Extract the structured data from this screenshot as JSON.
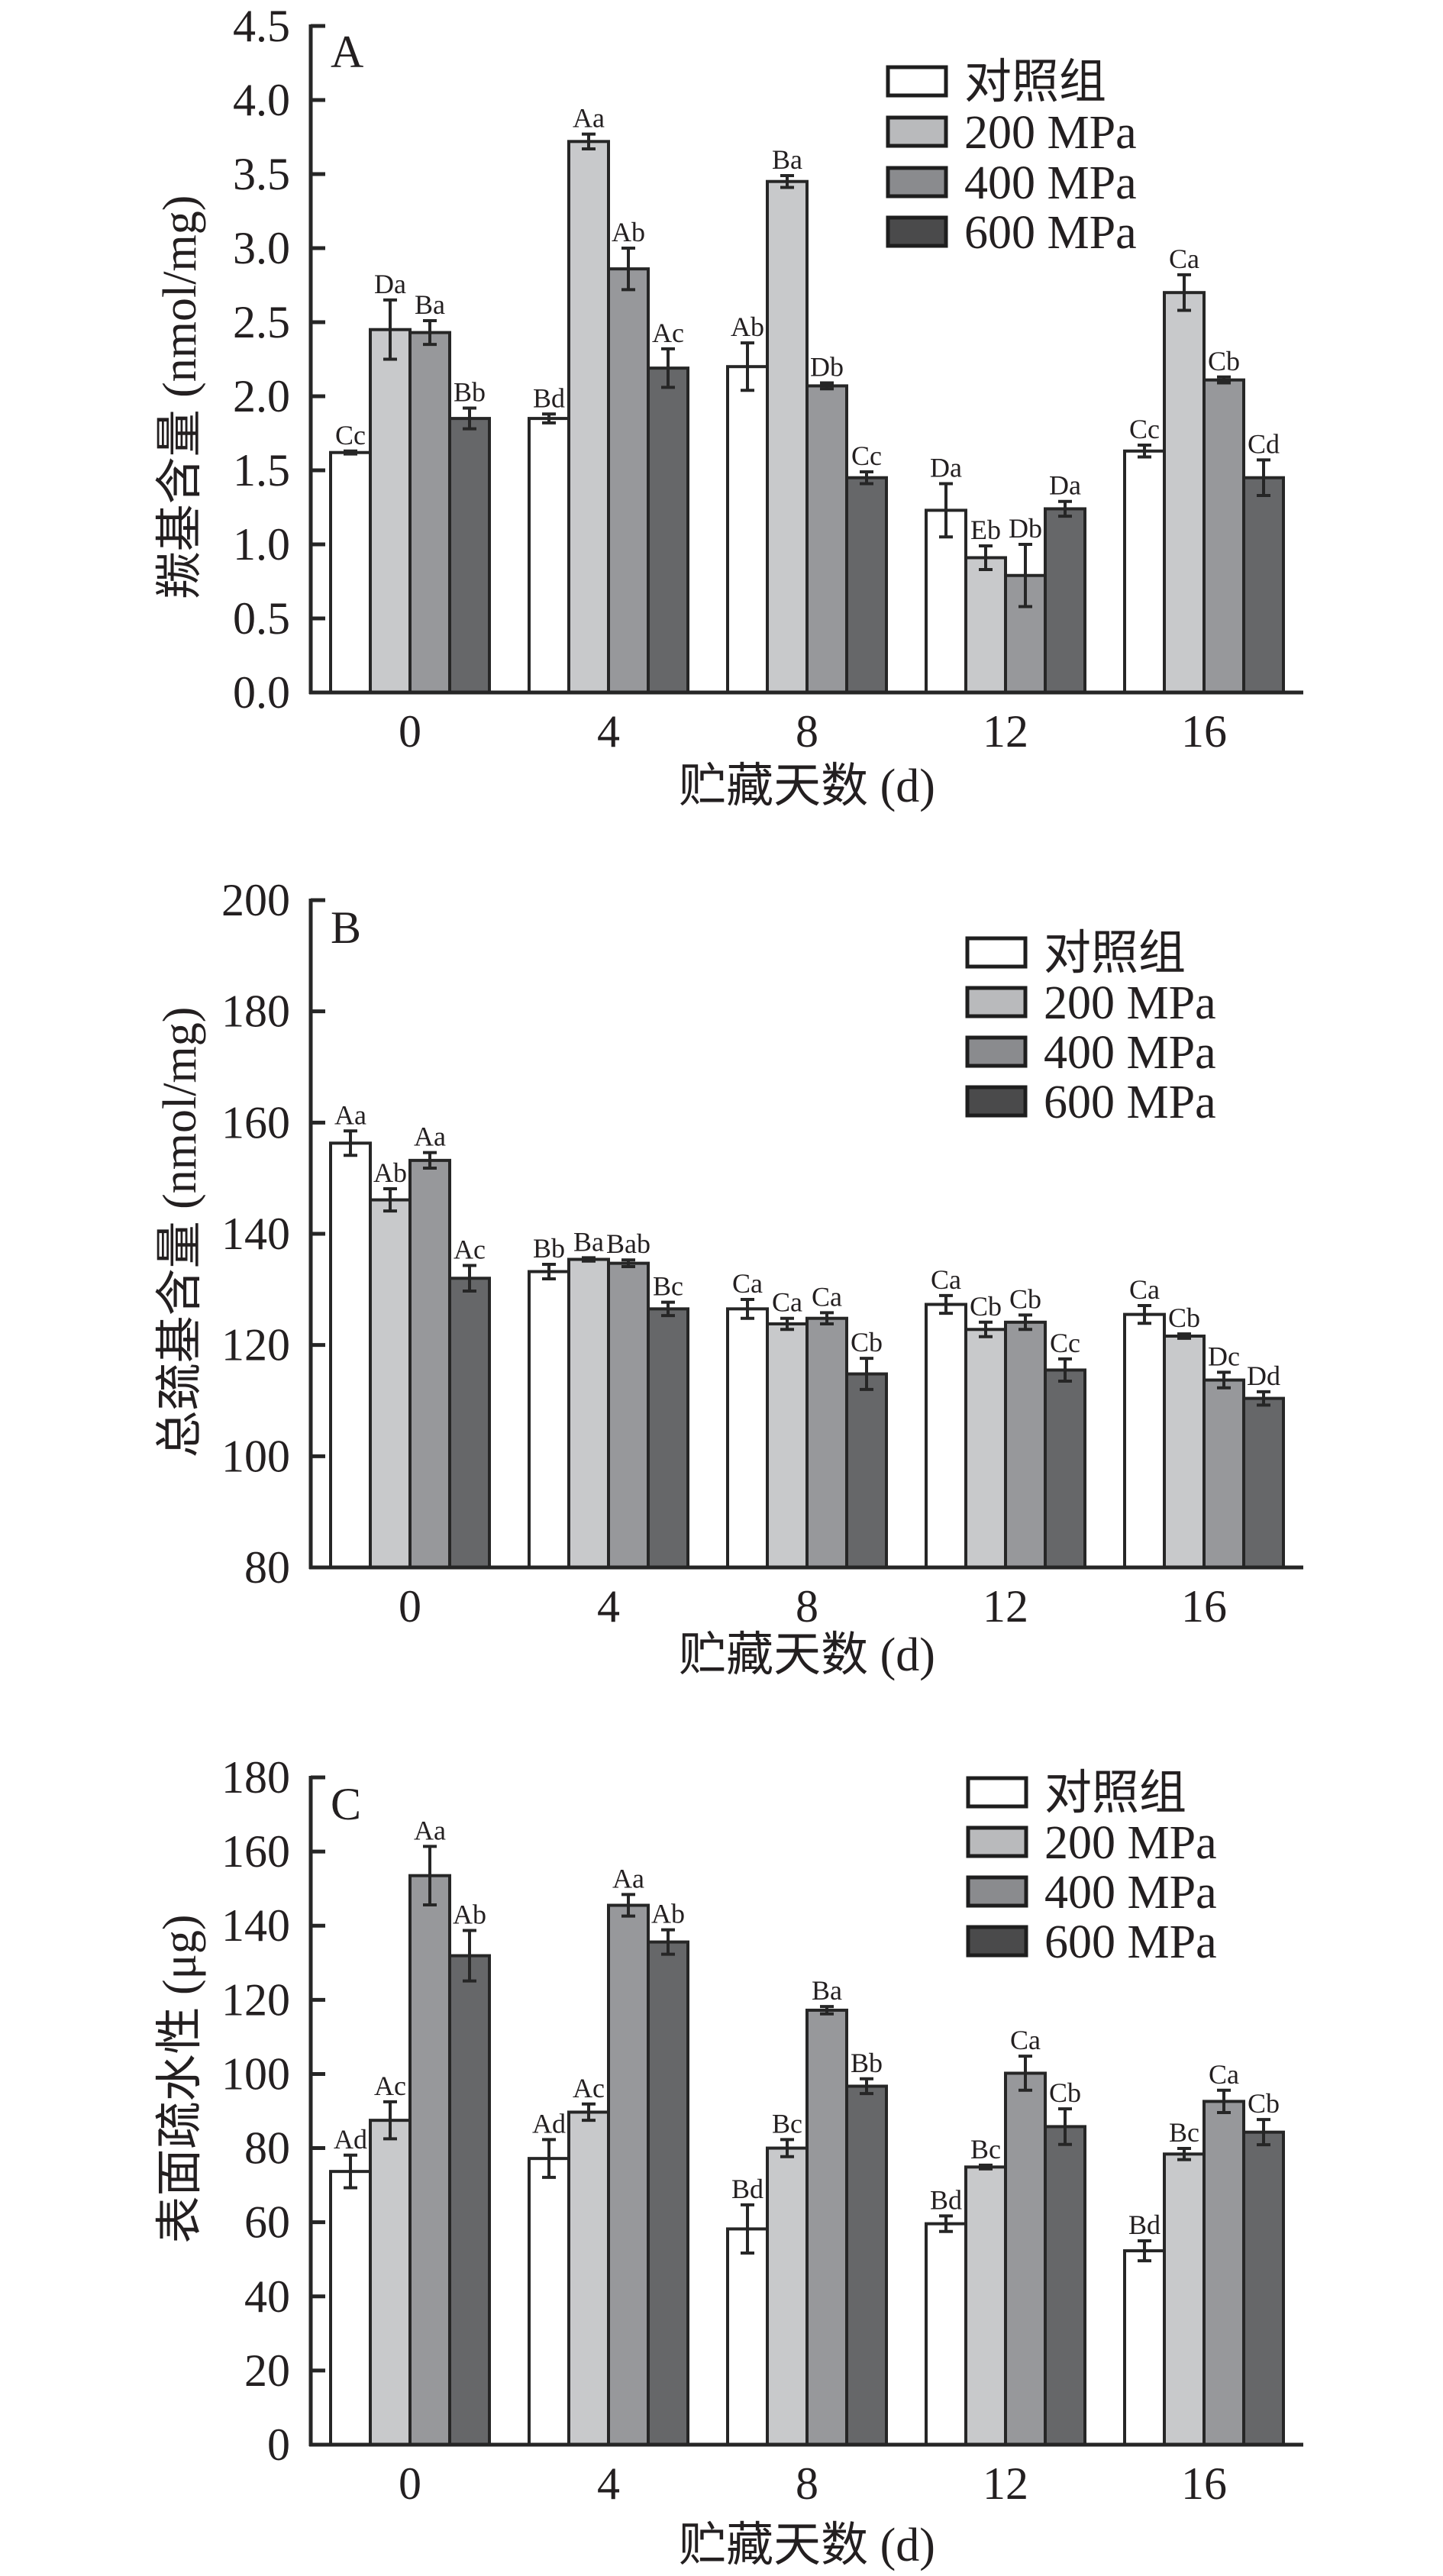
{
  "colors": {
    "axis": "#262626",
    "control": "#ffffff",
    "p200": "#c8c9cb",
    "p400": "#97989b",
    "p600": "#666769",
    "legend_p200": "#b9babc",
    "legend_p400": "#8a8b8e",
    "legend_p600": "#4a4a4b"
  },
  "chart_data": [
    {
      "type": "bar",
      "panel": "A",
      "title": "",
      "xlabel": "贮藏天数 (d)",
      "ylabel": "羰基含量 (nmol/mg)",
      "ylim": [
        0,
        4.5
      ],
      "yticks": [
        "0.0",
        "0.5",
        "1.0",
        "1.5",
        "2.0",
        "2.5",
        "3.0",
        "3.5",
        "4.0",
        "4.5"
      ],
      "ytick_values": [
        0,
        0.5,
        1,
        1.5,
        2,
        2.5,
        3,
        3.5,
        4,
        4.5
      ],
      "categories": [
        "0",
        "4",
        "8",
        "12",
        "16"
      ],
      "legend": [
        "对照组",
        "200 MPa",
        "400 MPa",
        "600 MPa"
      ],
      "legend_position": "top-right",
      "grid": false,
      "series": [
        {
          "name": "对照组",
          "values": [
            1.62,
            1.85,
            2.2,
            1.23,
            1.63
          ],
          "errors": [
            0.01,
            0.03,
            0.16,
            0.18,
            0.04
          ],
          "labels": [
            "Cc",
            "Bd",
            "Ab",
            "Da",
            "Cc"
          ]
        },
        {
          "name": "200 MPa",
          "values": [
            2.45,
            3.72,
            3.45,
            0.91,
            2.7
          ],
          "errors": [
            0.2,
            0.05,
            0.04,
            0.08,
            0.12
          ],
          "labels": [
            "Da",
            "Aa",
            "Ba",
            "Eb",
            "Ca"
          ]
        },
        {
          "name": "400 MPa",
          "values": [
            2.43,
            2.86,
            2.07,
            0.79,
            2.11
          ],
          "errors": [
            0.08,
            0.14,
            0.02,
            0.21,
            0.02
          ],
          "labels": [
            "Ba",
            "Ab",
            "Db",
            "Db",
            "Cb"
          ]
        },
        {
          "name": "600 MPa",
          "values": [
            1.85,
            2.19,
            1.45,
            1.24,
            1.45
          ],
          "errors": [
            0.07,
            0.13,
            0.04,
            0.05,
            0.12
          ],
          "labels": [
            "Bb",
            "Ac",
            "Cc",
            "Da",
            "Cd"
          ]
        }
      ]
    },
    {
      "type": "bar",
      "panel": "B",
      "title": "",
      "xlabel": "贮藏天数 (d)",
      "ylabel": "总巯基含量 (nmol/mg)",
      "ylim": [
        80,
        200
      ],
      "yticks": [
        "80",
        "100",
        "120",
        "140",
        "160",
        "180",
        "200"
      ],
      "ytick_values": [
        80,
        100,
        120,
        140,
        160,
        180,
        200
      ],
      "categories": [
        "0",
        "4",
        "8",
        "12",
        "16"
      ],
      "legend": [
        "对照组",
        "200 MPa",
        "400 MPa",
        "600 MPa"
      ],
      "legend_position": "top-right",
      "grid": false,
      "series": [
        {
          "name": "对照组",
          "values": [
            156.3,
            133.2,
            126.5,
            127.3,
            125.5
          ],
          "errors": [
            2.2,
            1.3,
            1.7,
            1.6,
            1.6
          ],
          "labels": [
            "Aa",
            "Bb",
            "Ca",
            "Ca",
            "Ca"
          ]
        },
        {
          "name": "200 MPa",
          "values": [
            146.1,
            135.4,
            123.8,
            122.8,
            121.6
          ],
          "errors": [
            2.0,
            0.3,
            1.0,
            1.3,
            0.4
          ],
          "labels": [
            "Ab",
            "Ba",
            "Ca",
            "Cb",
            "Cb"
          ]
        },
        {
          "name": "400 MPa",
          "values": [
            153.2,
            134.7,
            124.8,
            124.1,
            113.7
          ],
          "errors": [
            1.4,
            0.6,
            1.0,
            1.3,
            1.4
          ],
          "labels": [
            "Aa",
            "Bab",
            "Ca",
            "Cb",
            "Dc"
          ]
        },
        {
          "name": "600 MPa",
          "values": [
            132.0,
            126.5,
            114.8,
            115.5,
            110.4
          ],
          "errors": [
            2.3,
            1.2,
            2.8,
            2.0,
            1.2
          ],
          "labels": [
            "Ac",
            "Bc",
            "Cb",
            "Cc",
            "Dd"
          ]
        }
      ]
    },
    {
      "type": "bar",
      "panel": "C",
      "title": "",
      "xlabel": "贮藏天数 (d)",
      "ylabel": "表面疏水性 (μg)",
      "ylim": [
        0,
        180
      ],
      "yticks": [
        "0",
        "20",
        "40",
        "60",
        "80",
        "100",
        "120",
        "140",
        "160",
        "180"
      ],
      "ytick_values": [
        0,
        20,
        40,
        60,
        80,
        100,
        120,
        140,
        160,
        180
      ],
      "categories": [
        "0",
        "4",
        "8",
        "12",
        "16"
      ],
      "legend": [
        "对照组",
        "200 MPa",
        "400 MPa",
        "600 MPa"
      ],
      "legend_position": "top-right",
      "grid": false,
      "series": [
        {
          "name": "对照组",
          "values": [
            73.7,
            77.2,
            58.2,
            59.6,
            52.3
          ],
          "errors": [
            4.4,
            5.1,
            6.5,
            2.1,
            2.7
          ],
          "labels": [
            "Ad",
            "Ad",
            "Bd",
            "Bd",
            "Bd"
          ]
        },
        {
          "name": "200 MPa",
          "values": [
            87.5,
            89.7,
            80.0,
            74.9,
            78.4
          ],
          "errors": [
            5.0,
            2.2,
            2.3,
            0.5,
            1.5
          ],
          "labels": [
            "Ac",
            "Ac",
            "Bc",
            "Bc",
            "Bc"
          ]
        },
        {
          "name": "400 MPa",
          "values": [
            153.5,
            145.5,
            117.2,
            100.2,
            92.6
          ],
          "errors": [
            7.9,
            2.9,
            1.0,
            4.6,
            3.0
          ],
          "labels": [
            "Aa",
            "Aa",
            "Ba",
            "Ca",
            "Ca"
          ]
        },
        {
          "name": "600 MPa",
          "values": [
            131.9,
            135.6,
            96.7,
            85.8,
            84.3
          ],
          "errors": [
            6.8,
            3.3,
            2.0,
            4.8,
            3.4
          ],
          "labels": [
            "Ab",
            "Ab",
            "Bb",
            "Cb",
            "Cb"
          ]
        }
      ]
    }
  ]
}
